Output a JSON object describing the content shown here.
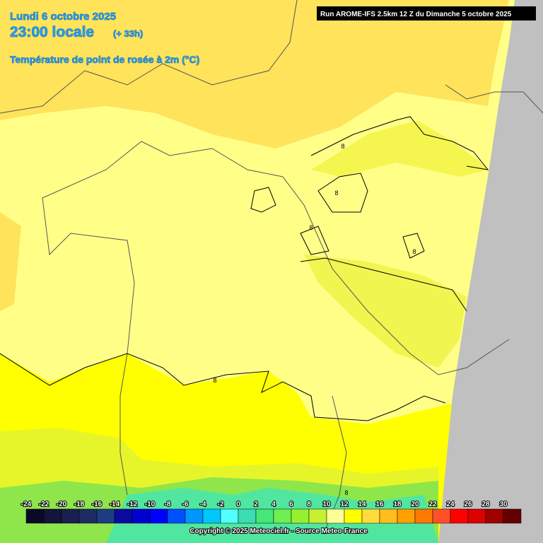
{
  "header": {
    "date": "Lundi 6 octobre 2025",
    "time": "23:00 locale",
    "lead": "(+ 33h)",
    "parameter": "Température de point de rosée à 2m (°C)",
    "run": "Run AROME-IFS 2.5km 12 Z du Dimanche 5 octobre 2025"
  },
  "contour_labels": [
    "8",
    "8",
    "8",
    "8",
    "8",
    "8"
  ],
  "scale": {
    "ticks": [
      -24,
      -22,
      -20,
      -18,
      -16,
      -14,
      -12,
      -10,
      -8,
      -6,
      -4,
      -2,
      0,
      2,
      4,
      6,
      8,
      10,
      12,
      14,
      16,
      18,
      20,
      22,
      24,
      26,
      28,
      30
    ],
    "colors": [
      "#0a0a28",
      "#14143c",
      "#1a1e50",
      "#1e2c64",
      "#1e3c82",
      "#0a0aa0",
      "#0000d2",
      "#0000ff",
      "#0050ff",
      "#0096ff",
      "#00c8ff",
      "#50ffff",
      "#3cdcb4",
      "#46e678",
      "#6ef050",
      "#96f032",
      "#c8f032",
      "#ffff96",
      "#ffff00",
      "#ffdc3c",
      "#ffbe1e",
      "#ffa000",
      "#ff7800",
      "#ff5028",
      "#ff0000",
      "#dc0000",
      "#a00000",
      "#640000"
    ]
  },
  "footer": {
    "copyright": "Copyright © 2025 Meteociel.fr - Source Meteo-France"
  }
}
